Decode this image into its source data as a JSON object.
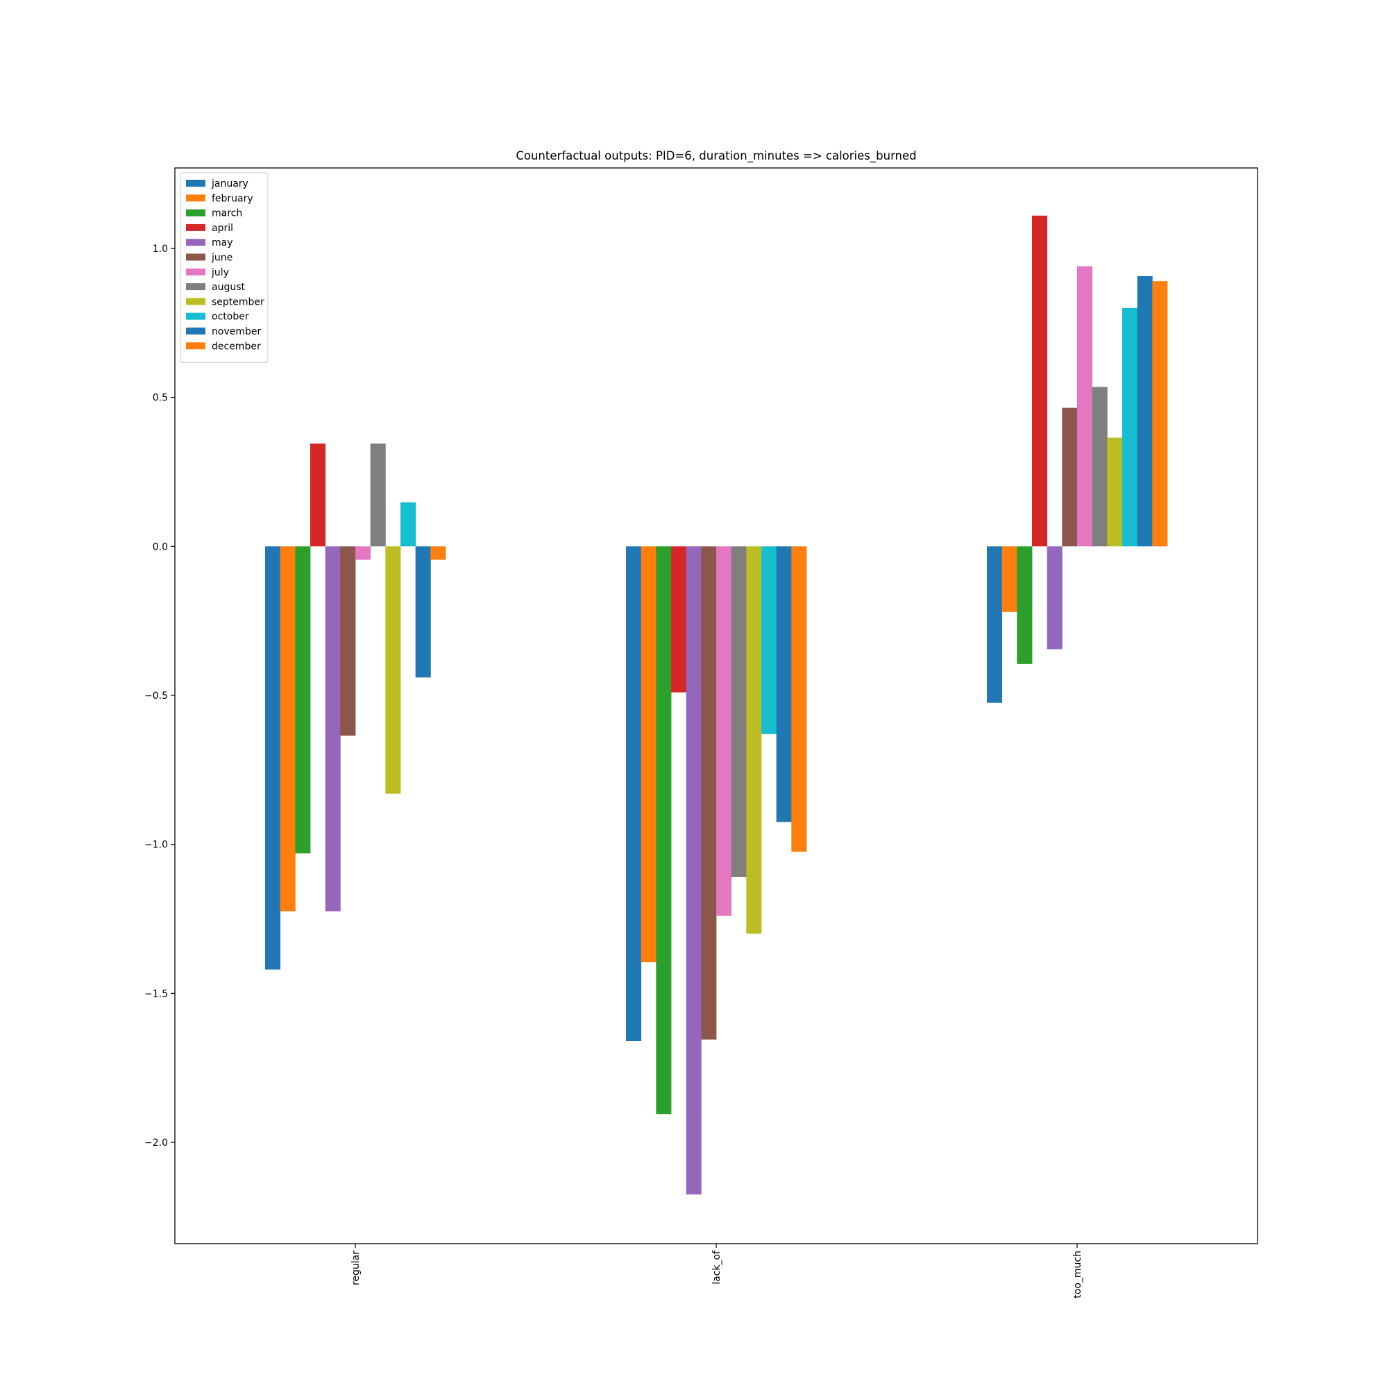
{
  "chart_data": {
    "type": "bar",
    "title": "Counterfactual outputs: PID=6, duration_minutes => calories_burned",
    "xlabel": "",
    "ylabel": "",
    "categories": [
      "regular",
      "lack_of",
      "too_much"
    ],
    "ylim": [
      -2.34,
      1.27
    ],
    "yticks": [
      -2.0,
      -1.5,
      -1.0,
      -0.5,
      0.0,
      0.5,
      1.0
    ],
    "ytick_labels": [
      "−2.0",
      "−1.5",
      "−1.0",
      "−0.5",
      "0.0",
      "0.5",
      "1.0"
    ],
    "grid": false,
    "legend_position": "top-left",
    "series": [
      {
        "name": "january",
        "color": "#1f77b4",
        "values": [
          -1.42,
          -1.66,
          -0.525
        ]
      },
      {
        "name": "february",
        "color": "#ff7f0e",
        "values": [
          -1.225,
          -1.395,
          -0.22
        ]
      },
      {
        "name": "march",
        "color": "#2ca02c",
        "values": [
          -1.03,
          -1.905,
          -0.395
        ]
      },
      {
        "name": "april",
        "color": "#d62728",
        "values": [
          0.345,
          -0.49,
          1.11
        ]
      },
      {
        "name": "may",
        "color": "#9467bd",
        "values": [
          -1.225,
          -2.175,
          -0.345
        ]
      },
      {
        "name": "june",
        "color": "#8c564b",
        "values": [
          -0.635,
          -1.655,
          0.465
        ]
      },
      {
        "name": "july",
        "color": "#e377c2",
        "values": [
          -0.045,
          -1.24,
          0.94
        ]
      },
      {
        "name": "august",
        "color": "#7f7f7f",
        "values": [
          0.345,
          -1.11,
          0.535
        ]
      },
      {
        "name": "september",
        "color": "#bcbd22",
        "values": [
          -0.83,
          -1.3,
          0.365
        ]
      },
      {
        "name": "october",
        "color": "#17becf",
        "values": [
          0.148,
          -0.63,
          0.8
        ]
      },
      {
        "name": "november",
        "color": "#1f77b4",
        "values": [
          -0.44,
          -0.925,
          0.907
        ]
      },
      {
        "name": "december",
        "color": "#ff7f0e",
        "values": [
          -0.045,
          -1.025,
          0.89
        ]
      }
    ]
  }
}
